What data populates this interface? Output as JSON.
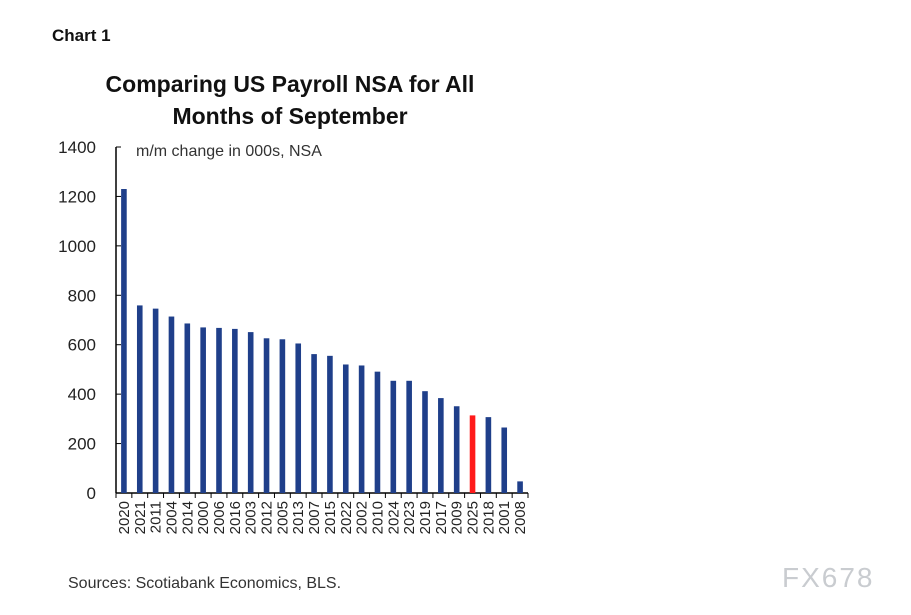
{
  "chart_label": "Chart 1",
  "source": "Sources: Scotiabank Economics, BLS.",
  "watermark": "FX678",
  "chart_data": {
    "type": "bar",
    "title": "Comparing US Payroll NSA for All Months of September",
    "title_lines": [
      "Comparing US Payroll NSA for All",
      "Months of September"
    ],
    "ylabel": "m/m change in 000s, NSA",
    "xlabel": "",
    "ylim": [
      0,
      1400
    ],
    "yticks": [
      0,
      200,
      400,
      600,
      800,
      1000,
      1200,
      1400
    ],
    "grid": false,
    "categories": [
      "2020",
      "2021",
      "2011",
      "2004",
      "2014",
      "2000",
      "2006",
      "2016",
      "2003",
      "2012",
      "2005",
      "2013",
      "2007",
      "2015",
      "2022",
      "2002",
      "2010",
      "2024",
      "2023",
      "2019",
      "2017",
      "2009",
      "2025",
      "2018",
      "2001",
      "2008"
    ],
    "values": [
      1230,
      759,
      746,
      714,
      686,
      670,
      668,
      664,
      651,
      626,
      622,
      605,
      562,
      555,
      520,
      516,
      491,
      454,
      454,
      412,
      384,
      351,
      314,
      307,
      265,
      47
    ],
    "colors": {
      "default": "#1f3f8a",
      "highlight": "#ff1a1a"
    },
    "highlight": "2025"
  }
}
